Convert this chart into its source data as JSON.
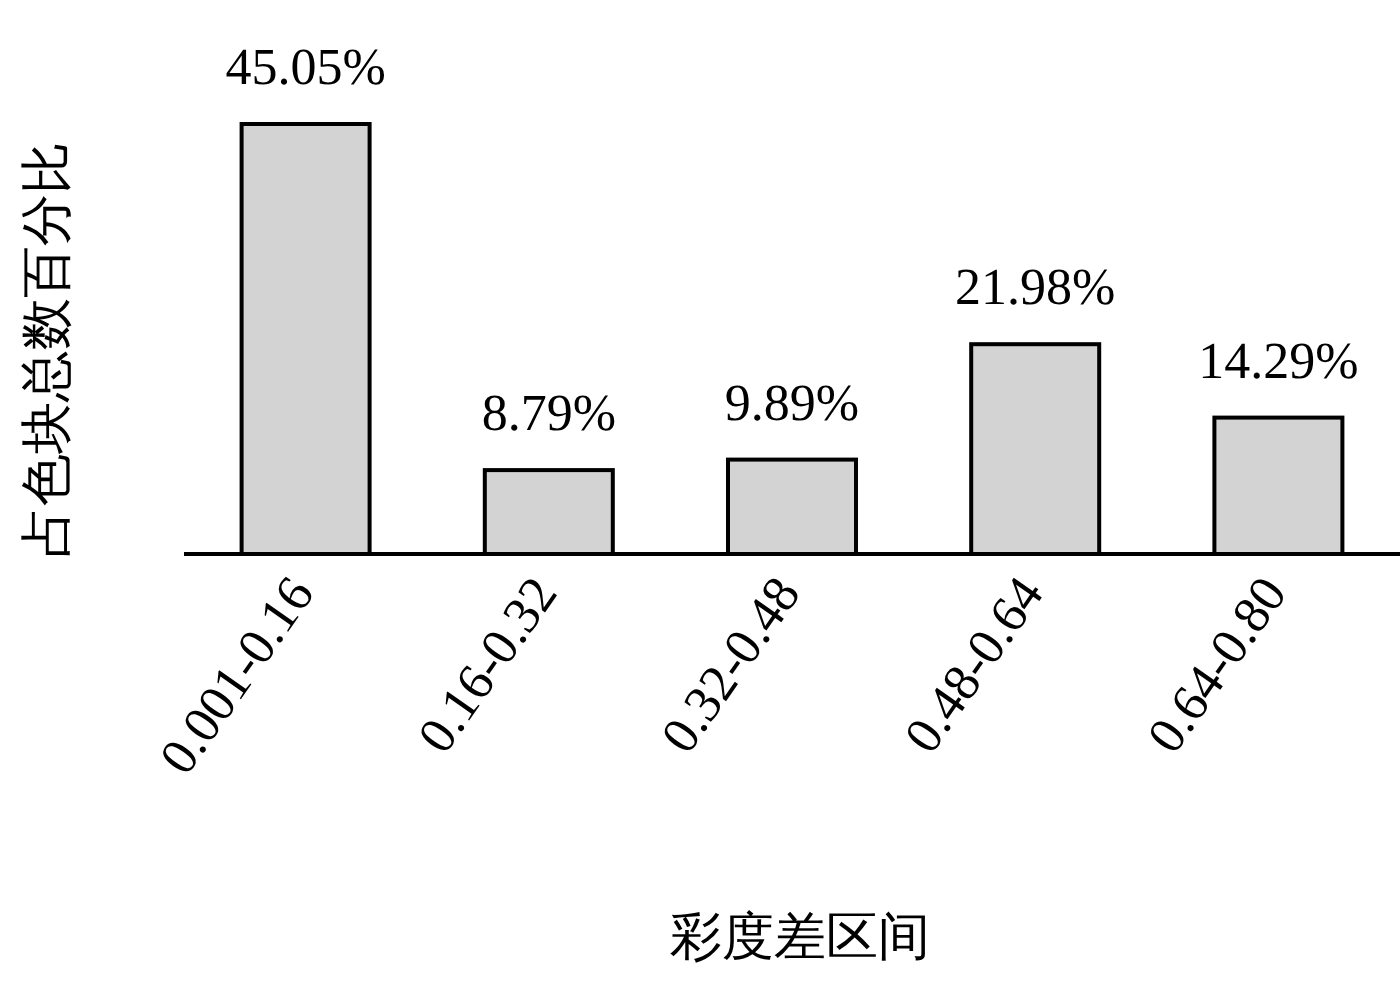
{
  "chart_data": {
    "type": "bar",
    "xlabel": "彩度差区间",
    "ylabel": "占色块总数百分比",
    "categories": [
      "0.001-0.16",
      "0.16-0.32",
      "0.32-0.48",
      "0.48-0.64",
      "0.64-0.80"
    ],
    "values": [
      45.05,
      8.79,
      9.89,
      21.98,
      14.29
    ],
    "value_labels": [
      "45.05%",
      "8.79%",
      "9.89%",
      "21.98%",
      "14.29%"
    ],
    "color": "#d3d3d3"
  }
}
